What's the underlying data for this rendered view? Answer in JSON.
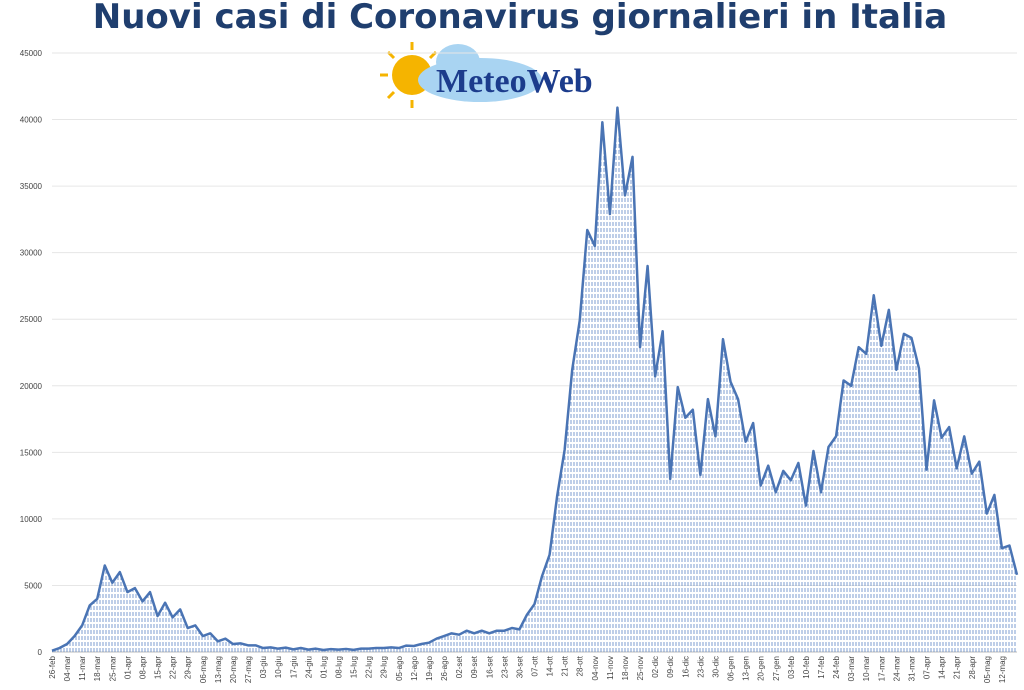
{
  "chart_data": {
    "type": "line",
    "title": "Nuovi casi di Coronavirus giornalieri in Italia",
    "logo": "MeteoWeb",
    "categories": [
      "26-feb",
      null,
      "04-mar",
      null,
      "11-mar",
      null,
      "18-mar",
      null,
      "25-mar",
      null,
      "01-apr",
      null,
      "08-apr",
      null,
      "15-apr",
      null,
      "22-apr",
      null,
      "29-apr",
      null,
      "06-mag",
      null,
      "13-mag",
      null,
      "20-mag",
      null,
      "27-mag",
      null,
      "03-giu",
      null,
      "10-giu",
      null,
      "17-giu",
      null,
      "24-giu",
      null,
      "01-lug",
      null,
      "08-lug",
      null,
      "15-lug",
      null,
      "22-lug",
      null,
      "29-lug",
      null,
      "05-ago",
      null,
      "12-ago",
      null,
      "19-ago",
      null,
      "26-ago",
      null,
      "02-set",
      null,
      "09-set",
      null,
      "16-set",
      null,
      "23-set",
      null,
      "30-set",
      null,
      "07-ott",
      null,
      "14-ott",
      null,
      "21-ott",
      null,
      "28-ott",
      null,
      "04-nov",
      null,
      "11-nov",
      null,
      "18-nov",
      null,
      "25-nov",
      null,
      "02-dic",
      null,
      "09-dic",
      null,
      "16-dic",
      null,
      "23-dic",
      null,
      "30-dic",
      null,
      "06-gen",
      null,
      "13-gen",
      null,
      "20-gen",
      null,
      "27-gen",
      null,
      "03-feb",
      null,
      "10-feb",
      null,
      "17-feb",
      null,
      "24-feb",
      null,
      "03-mar",
      null,
      "10-mar",
      null,
      "17-mar",
      null,
      "24-mar",
      null,
      "31-mar",
      null,
      "07-apr",
      null,
      "14-apr",
      null,
      "21-apr",
      null,
      "28-apr",
      null,
      "05-mag",
      null,
      "12-mag",
      null,
      null
    ],
    "values": [
      100,
      300,
      600,
      1200,
      2000,
      3500,
      4000,
      6500,
      5200,
      6000,
      4500,
      4800,
      3800,
      4500,
      2700,
      3700,
      2600,
      3200,
      1800,
      2000,
      1200,
      1400,
      800,
      1000,
      600,
      650,
      500,
      500,
      300,
      350,
      250,
      330,
      200,
      300,
      180,
      250,
      150,
      220,
      180,
      230,
      160,
      250,
      250,
      300,
      300,
      350,
      300,
      480,
      450,
      600,
      700,
      1000,
      1200,
      1400,
      1300,
      1600,
      1400,
      1600,
      1400,
      1600,
      1600,
      1800,
      1700,
      2800,
      3600,
      5700,
      7300,
      11700,
      15200,
      21200,
      24900,
      31700,
      30500,
      39800,
      32900,
      40900,
      34300,
      37200,
      22900,
      29000,
      20700,
      24100,
      13000,
      19900,
      17600,
      18200,
      13300,
      19000,
      16200,
      23500,
      20300,
      19000,
      15800,
      17200,
      12500,
      14000,
      12000,
      13600,
      12900,
      14200,
      11000,
      15100,
      12000,
      15400,
      16200,
      20400,
      20000,
      22900,
      22400,
      26800,
      23000,
      25700,
      21200,
      23900,
      23600,
      21300,
      13700,
      18900,
      16100,
      16900,
      13800,
      16200,
      13400,
      14300,
      10400,
      11800,
      7800,
      8000,
      5800
    ],
    "color": "#4a74b4",
    "ylim": [
      0,
      45000
    ],
    "yticks": [
      0,
      5000,
      10000,
      15000,
      20000,
      25000,
      30000,
      35000,
      40000,
      45000
    ],
    "grid": true
  }
}
